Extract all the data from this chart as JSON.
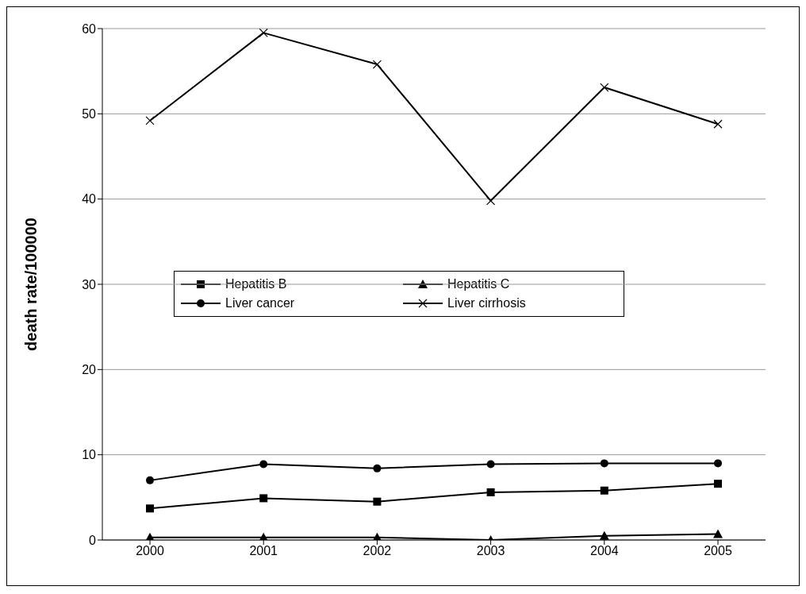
{
  "chart_data": {
    "type": "line",
    "ylabel": "death rate/100000",
    "categories": [
      "2000",
      "2001",
      "2002",
      "2003",
      "2004",
      "2005"
    ],
    "series": [
      {
        "name": "Hepatitis B",
        "color": "#000000",
        "marker": "square",
        "values": [
          3.7,
          4.9,
          4.5,
          5.6,
          5.8,
          6.6
        ]
      },
      {
        "name": "Hepatitis C",
        "color": "#000000",
        "marker": "triangle",
        "values": [
          0.3,
          0.3,
          0.3,
          0,
          0.5,
          0.7
        ]
      },
      {
        "name": "Liver cancer",
        "color": "#000000",
        "marker": "circle",
        "values": [
          7.0,
          8.9,
          8.4,
          8.9,
          9.0,
          9.0
        ]
      },
      {
        "name": "Liver cirrhosis",
        "color": "#000000",
        "marker": "cross",
        "values": [
          49.2,
          59.5,
          55.8,
          39.8,
          53.1,
          48.8
        ]
      }
    ],
    "ylim": [
      0,
      60
    ],
    "yticks": [
      0,
      10,
      20,
      30,
      40,
      50,
      60
    ],
    "grid": "y",
    "legend": "left"
  }
}
